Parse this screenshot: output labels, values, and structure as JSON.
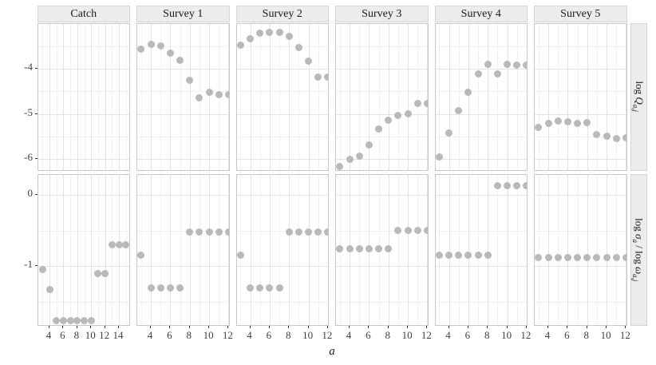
{
  "figure": {
    "xlabel": "a",
    "col_labels": [
      "Catch",
      "Survey 1",
      "Survey 2",
      "Survey 3",
      "Survey 4",
      "Survey 5"
    ],
    "row_labels": [
      "log Q_{a,j}",
      "log σ_{a} / log ω_{a,j}"
    ]
  },
  "chart_data": {
    "type": "scatter",
    "facet_grid": {
      "columns": [
        "Catch",
        "Survey 1",
        "Survey 2",
        "Survey 3",
        "Survey 4",
        "Survey 5"
      ],
      "rows": [
        "log Q_{a,j}",
        "log σ_{a} / log ω_{a,j}"
      ]
    },
    "xlabel": "a",
    "point_color": "#b9b9b9",
    "grid": "on",
    "x_ticks_catch": [
      4,
      6,
      8,
      10,
      12,
      14
    ],
    "x_ticks_survey": [
      4,
      6,
      8,
      10,
      12
    ],
    "x_minor_catch": [
      3,
      5,
      7,
      9,
      11,
      13,
      15
    ],
    "x_minor_survey": [
      3,
      5,
      7,
      9,
      11
    ],
    "xlim_catch": [
      2.33,
      15.72
    ],
    "xlim_survey": [
      2.6,
      12.17
    ],
    "y_ticks_top": [
      -4,
      -5,
      -6
    ],
    "y_minor_top": [
      -3.5,
      -4.5,
      -5.5
    ],
    "y_ticks_bottom": [
      0,
      -1
    ],
    "y_minor_bottom": [
      -0.5,
      -1.5
    ],
    "ylim_top": [
      -6.27,
      -3.01
    ],
    "ylim_bottom": [
      -1.85,
      0.29
    ],
    "panels": [
      {
        "row": 0,
        "col": 0,
        "x": [],
        "y": []
      },
      {
        "row": 0,
        "col": 1,
        "x": [
          3,
          4,
          5,
          6,
          7,
          8,
          9,
          10,
          11,
          12
        ],
        "y": [
          -3.56,
          -3.46,
          -3.5,
          -3.66,
          -3.82,
          -4.25,
          -4.64,
          -4.52,
          -4.57,
          -4.57
        ]
      },
      {
        "row": 0,
        "col": 2,
        "x": [
          3,
          4,
          5,
          6,
          7,
          8,
          9,
          10,
          11,
          12
        ],
        "y": [
          -3.47,
          -3.34,
          -3.22,
          -3.19,
          -3.2,
          -3.29,
          -3.53,
          -3.84,
          -4.18,
          -4.18
        ]
      },
      {
        "row": 0,
        "col": 3,
        "x": [
          3,
          4,
          5,
          6,
          7,
          8,
          9,
          10,
          11,
          12
        ],
        "y": [
          -6.17,
          -6.0,
          -5.93,
          -5.69,
          -5.34,
          -5.14,
          -5.04,
          -5.0,
          -4.77,
          -4.77
        ]
      },
      {
        "row": 0,
        "col": 4,
        "x": [
          3,
          4,
          5,
          6,
          7,
          8,
          9,
          10,
          11,
          12
        ],
        "y": [
          -5.96,
          -5.42,
          -4.93,
          -4.52,
          -4.11,
          -3.9,
          -4.11,
          -3.91,
          -3.92,
          -3.92
        ]
      },
      {
        "row": 0,
        "col": 5,
        "x": [
          3,
          4,
          5,
          6,
          7,
          8,
          9,
          10,
          11,
          12
        ],
        "y": [
          -5.3,
          -5.21,
          -5.15,
          -5.18,
          -5.21,
          -5.19,
          -5.45,
          -5.49,
          -5.55,
          -5.53
        ]
      },
      {
        "row": 1,
        "col": 0,
        "x": [
          3,
          4,
          5,
          6,
          7,
          8,
          9,
          10,
          11,
          12,
          13,
          14,
          15
        ],
        "y": [
          -1.05,
          -1.33,
          -1.77,
          -1.77,
          -1.77,
          -1.77,
          -1.77,
          -1.77,
          -1.1,
          -1.1,
          -0.7,
          -0.7,
          -0.7
        ]
      },
      {
        "row": 1,
        "col": 1,
        "x": [
          3,
          4,
          5,
          6,
          7,
          8,
          9,
          10,
          11,
          12
        ],
        "y": [
          -0.84,
          -1.31,
          -1.31,
          -1.31,
          -1.31,
          -0.52,
          -0.52,
          -0.52,
          -0.52,
          -0.52
        ]
      },
      {
        "row": 1,
        "col": 2,
        "x": [
          3,
          4,
          5,
          6,
          7,
          8,
          9,
          10,
          11,
          12
        ],
        "y": [
          -0.84,
          -1.31,
          -1.31,
          -1.31,
          -1.31,
          -0.52,
          -0.52,
          -0.52,
          -0.52,
          -0.52
        ]
      },
      {
        "row": 1,
        "col": 3,
        "x": [
          3,
          4,
          5,
          6,
          7,
          8,
          9,
          10,
          11,
          12
        ],
        "y": [
          -0.75,
          -0.75,
          -0.75,
          -0.75,
          -0.75,
          -0.75,
          -0.5,
          -0.5,
          -0.5,
          -0.5
        ]
      },
      {
        "row": 1,
        "col": 4,
        "x": [
          3,
          4,
          5,
          6,
          7,
          8,
          9,
          10,
          11,
          12
        ],
        "y": [
          -0.85,
          -0.85,
          -0.85,
          -0.85,
          -0.85,
          -0.85,
          0.13,
          0.13,
          0.13,
          0.13
        ]
      },
      {
        "row": 1,
        "col": 5,
        "x": [
          3,
          4,
          5,
          6,
          7,
          8,
          9,
          10,
          11,
          12
        ],
        "y": [
          -0.88,
          -0.88,
          -0.88,
          -0.88,
          -0.88,
          -0.88,
          -0.88,
          -0.88,
          -0.88,
          -0.88
        ]
      }
    ]
  }
}
